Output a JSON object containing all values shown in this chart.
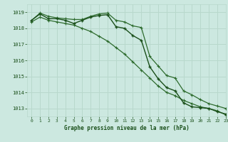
{
  "title": "Graphe pression niveau de la mer (hPa)",
  "background_color": "#cce8e0",
  "grid_color": "#b8d8cc",
  "line_color_dark": "#1a4f1a",
  "line_color_mid": "#2d6b2d",
  "xlim": [
    -0.5,
    23
  ],
  "ylim": [
    1012.5,
    1019.5
  ],
  "yticks": [
    1013,
    1014,
    1015,
    1016,
    1017,
    1018,
    1019
  ],
  "xticks": [
    0,
    1,
    2,
    3,
    4,
    5,
    6,
    7,
    8,
    9,
    10,
    11,
    12,
    13,
    14,
    15,
    16,
    17,
    18,
    19,
    20,
    21,
    22,
    23
  ],
  "series_upper": [
    1018.5,
    1018.95,
    1018.75,
    1018.65,
    1018.6,
    1018.55,
    1018.55,
    1018.75,
    1018.9,
    1018.95,
    1018.5,
    1018.4,
    1018.15,
    1018.05,
    1016.25,
    1015.65,
    1015.05,
    1014.9,
    1014.1,
    1013.85,
    1013.55,
    1013.3,
    1013.15,
    1013.0
  ],
  "series_main": [
    1018.5,
    1018.9,
    1018.6,
    1018.6,
    1018.5,
    1018.3,
    1018.5,
    1018.7,
    1018.8,
    1018.85,
    1018.1,
    1018.0,
    1017.55,
    1017.25,
    1015.6,
    1014.85,
    1014.3,
    1014.1,
    1013.35,
    1013.1,
    1013.05,
    1013.0,
    1012.8,
    1012.65
  ],
  "series_lower": [
    1018.4,
    1018.7,
    1018.5,
    1018.4,
    1018.3,
    1018.2,
    1018.0,
    1017.8,
    1017.5,
    1017.2,
    1016.8,
    1016.4,
    1015.9,
    1015.4,
    1014.9,
    1014.4,
    1014.0,
    1013.8,
    1013.5,
    1013.3,
    1013.1,
    1013.0,
    1012.85,
    1012.6
  ]
}
